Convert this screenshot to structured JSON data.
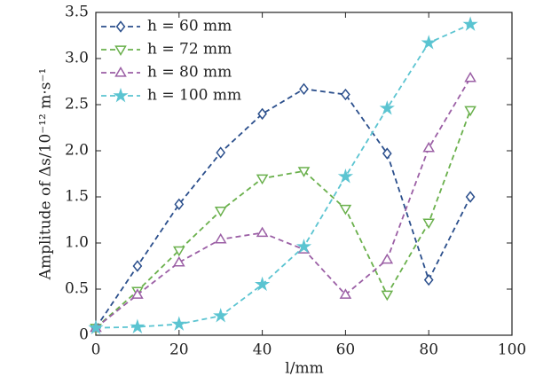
{
  "chart_data": {
    "type": "line",
    "x_label": "l/mm",
    "y_label": "Amplitude of Δs/10⁻¹² m·s⁻¹",
    "x": [
      0,
      10,
      20,
      30,
      40,
      50,
      60,
      70,
      80,
      90
    ],
    "series": [
      {
        "name": "h = 60 mm",
        "color": "#2b4f8c",
        "marker": "diamond",
        "values": [
          0.08,
          0.75,
          1.42,
          1.98,
          2.4,
          2.67,
          2.61,
          1.97,
          0.6,
          1.5
        ]
      },
      {
        "name": "h = 72 mm",
        "color": "#6ab04c",
        "marker": "triangle-down",
        "values": [
          0.08,
          0.48,
          0.92,
          1.35,
          1.7,
          1.78,
          1.37,
          0.44,
          1.22,
          2.44
        ]
      },
      {
        "name": "h = 80 mm",
        "color": "#9b5fa5",
        "marker": "triangle-up",
        "values": [
          0.08,
          0.44,
          0.79,
          1.04,
          1.11,
          0.93,
          0.44,
          0.82,
          2.03,
          2.79
        ]
      },
      {
        "name": "h = 100 mm",
        "color": "#5bc4d1",
        "marker": "star",
        "values": [
          0.08,
          0.09,
          0.12,
          0.21,
          0.55,
          0.96,
          1.72,
          2.46,
          3.17,
          3.37
        ]
      }
    ],
    "xlim": [
      0,
      100
    ],
    "xticks": [
      0,
      20,
      40,
      60,
      80,
      100
    ],
    "ylim": [
      0,
      3.5
    ],
    "yticks": [
      0,
      0.5,
      {
        "value": 1,
        "label": "1.0"
      },
      1.5,
      {
        "value": 2,
        "label": "2.0"
      },
      2.5,
      {
        "value": 3,
        "label": "3.0"
      },
      3.5
    ],
    "legend": "upper left",
    "line_style": "dashed"
  }
}
